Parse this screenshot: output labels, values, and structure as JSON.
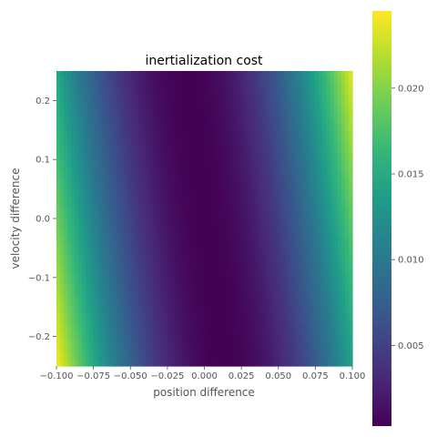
{
  "chart_data": {
    "type": "heatmap",
    "title": "inertialization cost",
    "xlabel": "position difference",
    "ylabel": "velocity difference",
    "xlim": [
      -0.1,
      0.1
    ],
    "ylim": [
      -0.25,
      0.25
    ],
    "x_ticks": [
      -0.1,
      -0.075,
      -0.05,
      -0.025,
      0.0,
      0.025,
      0.05,
      0.075,
      0.1
    ],
    "x_tick_labels": [
      "−0.100",
      "−0.075",
      "−0.050",
      "−0.025",
      "0.000",
      "0.025",
      "0.050",
      "0.075",
      "0.100"
    ],
    "y_ticks": [
      -0.2,
      -0.1,
      0.0,
      0.1,
      0.2
    ],
    "y_tick_labels": [
      "−0.2",
      "−0.1",
      "0.0",
      "0.1",
      "0.2"
    ],
    "colormap": "viridis",
    "colorbar": {
      "min": 0.0003,
      "max": 0.0245,
      "ticks": [
        0.005,
        0.01,
        0.015,
        0.02
      ],
      "tick_labels": [
        "0.005",
        "0.010",
        "0.015",
        "0.020"
      ]
    },
    "cost_model": {
      "min_position_at_velocity": [
        {
          "v": 0.25,
          "p": -0.012
        },
        {
          "v": -0.25,
          "p": 0.014
        }
      ],
      "value_at_min": 0.0003,
      "value_at_x_min_v_min": 0.0245,
      "value_at_x_max_v_max": 0.0245
    }
  }
}
